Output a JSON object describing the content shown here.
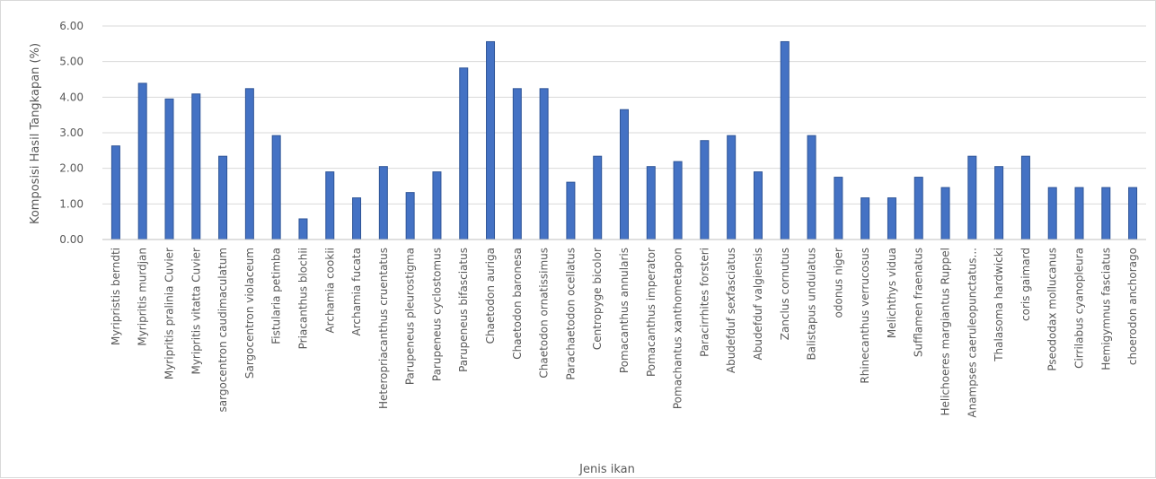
{
  "chart_data": {
    "type": "bar",
    "title": "",
    "xlabel": "Jenis ikan",
    "ylabel": "Komposisi Hasil Tangkapan (%)",
    "ylim": [
      0,
      6
    ],
    "yticks": [
      "0.00",
      "1.00",
      "2.00",
      "3.00",
      "4.00",
      "5.00",
      "6.00"
    ],
    "grid": true,
    "legend": "none",
    "bar_color": "#4472c4",
    "categories": [
      "Myripristis berndti",
      "Myripritis murdjan",
      "Myripritis pralinia Cuvier",
      "Myripritis vitatta Cuvier",
      "sargocentron caudimaculatum",
      "Sargocentron violaceum",
      "Fistularia petimba",
      "Priacanthus blochii",
      "Archamia cookii",
      "Archamia fucata",
      "Heteropriacanthus cruentatus",
      "Parupeneus pleurostigma",
      "Parupeneus cyclostomus",
      "Parupeneus bifasciatus",
      "Chaetodon auriga",
      "Chaetodon baronesa",
      "Chaetodon ornatissimus",
      "Parachaetodon ocellatus",
      "Centropyge bicolor",
      "Pomacanthus annularis",
      "Pomacanthus imperator",
      "Pomachantus xanthometapon",
      "Paracirrhites forsteri",
      "Abudefduf sexfasciatus",
      "Abudefduf valgiensis",
      "Zanclus cornutus",
      "Balistapus undulatus",
      "odonus niger",
      "Rhinecanthus verrucosus",
      "Melichthys vidua",
      "Sufflamen fraenatus",
      "Helichoeres margiantus Ruppel",
      "Anampses caeruleopunctatus...",
      "Thalasoma hardwicki",
      "coris gaimard",
      "Pseododax mollucanus",
      "Cirrilabus cyanopleura",
      "Hemigymnus fasciatus",
      "choerodon anchorago"
    ],
    "values": [
      2.63,
      4.39,
      3.95,
      4.09,
      2.34,
      4.24,
      2.92,
      0.58,
      1.9,
      1.17,
      2.05,
      1.32,
      1.9,
      4.82,
      5.56,
      4.24,
      4.24,
      1.61,
      2.34,
      3.65,
      2.05,
      2.19,
      2.78,
      2.92,
      1.9,
      5.56,
      2.92,
      1.75,
      1.17,
      1.17,
      1.75,
      1.46,
      2.34,
      2.05,
      2.34,
      1.46,
      1.46,
      1.46,
      1.46
    ]
  }
}
